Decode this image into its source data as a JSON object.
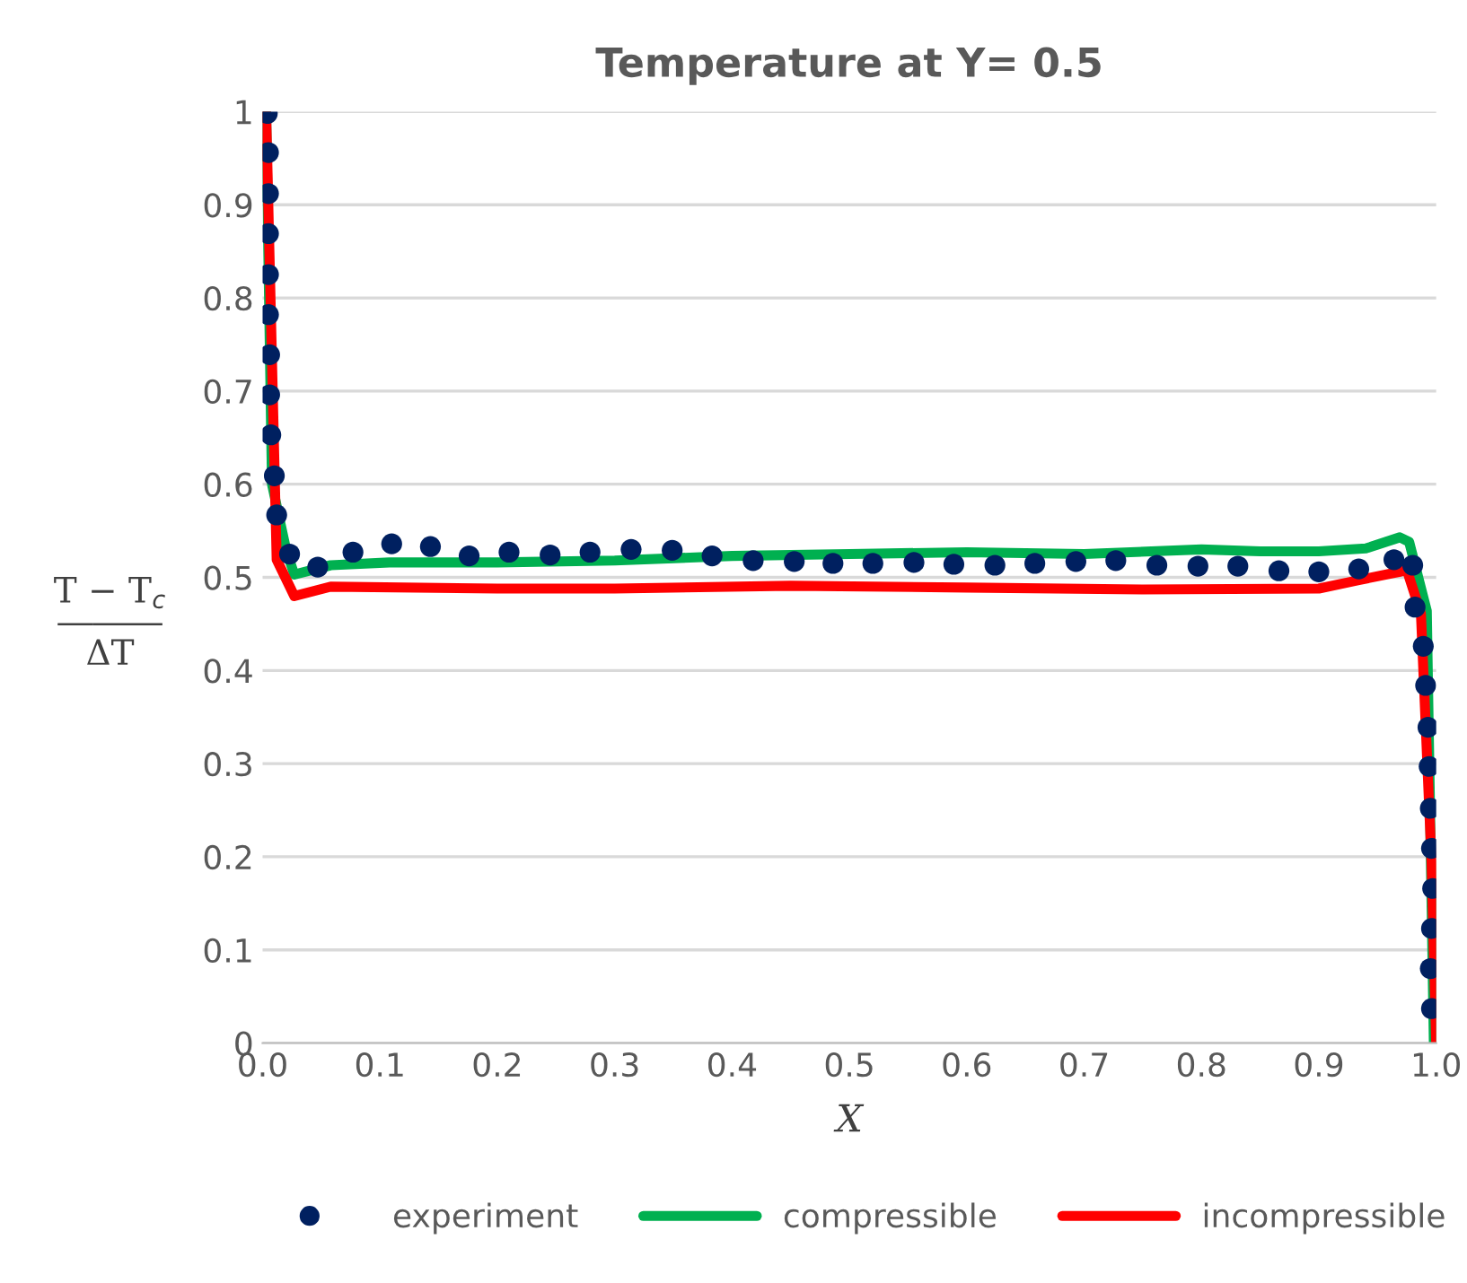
{
  "chart_data": {
    "type": "line",
    "title": "Temperature at Y= 0.5",
    "xlabel": "X",
    "ylabel": "T − T$_{c}$\n―――\nΔT",
    "xlim": [
      0,
      1
    ],
    "ylim": [
      0,
      1
    ],
    "xticks": [
      {
        "value": 0,
        "label": "0.0"
      },
      {
        "value": 0.1,
        "label": "0.1"
      },
      {
        "value": 0.2,
        "label": "0.2"
      },
      {
        "value": 0.3,
        "label": "0.3"
      },
      {
        "value": 0.4,
        "label": "0.4"
      },
      {
        "value": 0.5,
        "label": "0.5"
      },
      {
        "value": 0.6,
        "label": "0.6"
      },
      {
        "value": 0.7,
        "label": "0.7"
      },
      {
        "value": 0.8,
        "label": "0.8"
      },
      {
        "value": 0.9,
        "label": "0.9"
      },
      {
        "value": 1,
        "label": "1.0"
      }
    ],
    "yticks": [
      0,
      0.1,
      0.2,
      0.3,
      0.4,
      0.5,
      0.6,
      0.7,
      0.8,
      0.9,
      1
    ],
    "grid": "y",
    "legend": "bottom",
    "series": [
      {
        "name": "experiment",
        "type": "scatter",
        "marker": "circle",
        "color": "#002060",
        "x": [
          0.004,
          0.005,
          0.005,
          0.005,
          0.005,
          0.005,
          0.006,
          0.006,
          0.007,
          0.01,
          0.012,
          0.023,
          0.047,
          0.077,
          0.11,
          0.143,
          0.176,
          0.21,
          0.245,
          0.279,
          0.314,
          0.349,
          0.383,
          0.418,
          0.453,
          0.486,
          0.52,
          0.555,
          0.589,
          0.624,
          0.658,
          0.693,
          0.727,
          0.762,
          0.797,
          0.831,
          0.866,
          0.9,
          0.934,
          0.964,
          0.98,
          0.982,
          0.989,
          0.991,
          0.993,
          0.994,
          0.995,
          0.996,
          0.997,
          0.996,
          0.995,
          0.996
        ],
        "values": [
          0.998,
          0.956,
          0.912,
          0.869,
          0.825,
          0.782,
          0.739,
          0.696,
          0.653,
          0.609,
          0.567,
          0.525,
          0.511,
          0.527,
          0.536,
          0.533,
          0.523,
          0.527,
          0.524,
          0.527,
          0.53,
          0.529,
          0.523,
          0.518,
          0.517,
          0.515,
          0.515,
          0.516,
          0.514,
          0.513,
          0.515,
          0.517,
          0.518,
          0.513,
          0.512,
          0.512,
          0.507,
          0.506,
          0.509,
          0.519,
          0.513,
          0.468,
          0.426,
          0.384,
          0.339,
          0.297,
          0.252,
          0.209,
          0.166,
          0.123,
          0.08,
          0.037
        ]
      },
      {
        "name": "compressible",
        "color": "#00b050",
        "x": [
          0.003,
          0.008,
          0.02,
          0.027,
          0.058,
          0.108,
          0.2,
          0.3,
          0.4,
          0.5,
          0.6,
          0.7,
          0.8,
          0.85,
          0.9,
          0.94,
          0.969,
          0.977,
          0.992,
          0.998
        ],
        "values": [
          1.0,
          0.6,
          0.53,
          0.503,
          0.513,
          0.516,
          0.516,
          0.518,
          0.523,
          0.525,
          0.527,
          0.525,
          0.53,
          0.528,
          0.528,
          0.531,
          0.543,
          0.538,
          0.464,
          0.0
        ]
      },
      {
        "name": "incompressible",
        "color": "#ff0000",
        "x": [
          0.003,
          0.012,
          0.027,
          0.058,
          0.2,
          0.3,
          0.45,
          0.6,
          0.75,
          0.9,
          0.934,
          0.969,
          0.975,
          0.987,
          0.996,
          1.0
        ],
        "values": [
          1.0,
          0.519,
          0.48,
          0.49,
          0.488,
          0.488,
          0.491,
          0.489,
          0.487,
          0.488,
          0.497,
          0.506,
          0.508,
          0.461,
          0.195,
          0.0
        ]
      }
    ]
  }
}
